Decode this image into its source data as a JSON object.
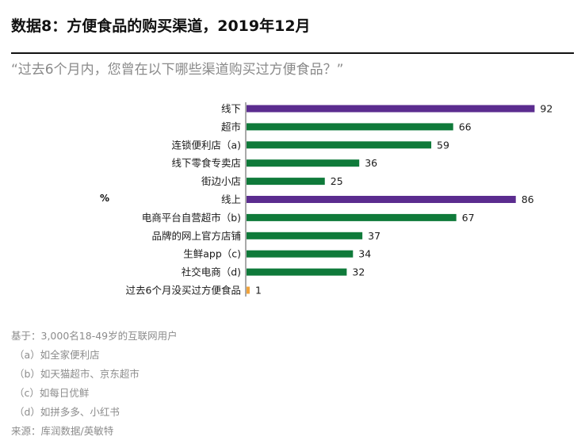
{
  "title": "数据8：方便食品的购买渠道，2019年12月",
  "subtitle": "“过去6个月内，您曾在以下哪些渠道购买过方便食品？”",
  "unit_label": "%",
  "colors": {
    "offline_online": "#5b2c8f",
    "channel": "#0f7a3a",
    "none": "#f2a33a"
  },
  "chart_data": {
    "type": "bar",
    "orientation": "horizontal",
    "categories": [
      "线下",
      "超市",
      "连锁便利店（a)",
      "线下零食专卖店",
      "街边小店",
      "线上",
      "电商平台自营超市（b)",
      "品牌的网上官方店铺",
      "生鲜app（c)",
      "社交电商（d)",
      "过去6个月没买过方便食品"
    ],
    "values": [
      92,
      66,
      59,
      36,
      25,
      86,
      67,
      37,
      34,
      32,
      1
    ],
    "bar_colors": [
      "purple",
      "green",
      "green",
      "green",
      "green",
      "purple",
      "green",
      "green",
      "green",
      "green",
      "orange"
    ],
    "xlim": [
      0,
      100
    ]
  },
  "footer": {
    "base": "基于：3,000名18-49岁的互联网用户",
    "note_a": "（a）如全家便利店",
    "note_b": "（b）如天猫超市、京东超市",
    "note_c": "（c）如每日优鲜",
    "note_d": "（d）如拼多多、小红书",
    "source": "来源：库润数据/英敏特"
  }
}
